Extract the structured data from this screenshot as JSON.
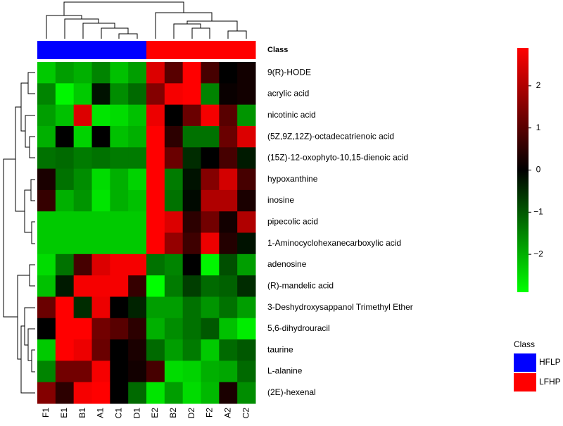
{
  "chart_data": {
    "type": "heatmap",
    "class_title": "Class",
    "columns": [
      "F1",
      "E1",
      "B1",
      "A1",
      "C1",
      "D1",
      "E2",
      "B2",
      "D2",
      "F2",
      "A2",
      "C2"
    ],
    "column_class": [
      "HFLP",
      "HFLP",
      "HFLP",
      "HFLP",
      "HFLP",
      "HFLP",
      "LFHP",
      "LFHP",
      "LFHP",
      "LFHP",
      "LFHP",
      "LFHP"
    ],
    "classes": [
      {
        "name": "HFLP",
        "color": "#0000ff"
      },
      {
        "name": "LFHP",
        "color": "#ff0000"
      }
    ],
    "rows": [
      "9(R)-HODE",
      "acrylic acid",
      "nicotinic acid",
      "(5Z,9Z,12Z)-octadecatrienoic acid",
      "(15Z)-12-oxophyto-10,15-dienoic acid",
      "hypoxanthine",
      "inosine",
      "pipecolic acid",
      "1-Aminocyclohexanecarboxylic acid",
      "adenosine",
      "(R)-mandelic acid",
      "3-Deshydroxysappanol Trimethyl Ether",
      "5,6-dihydrouracil",
      "taurine",
      "L-alanine",
      "(2E)-hexenal"
    ],
    "values": [
      [
        -2.3,
        -1.8,
        -2,
        -1.5,
        -2.2,
        -1.8,
        2.5,
        1,
        2.9,
        0.8,
        0,
        0.2
      ],
      [
        -1.5,
        -2.8,
        -2.3,
        -0.2,
        -1.6,
        -1.2,
        1.5,
        2.8,
        2.9,
        -1.5,
        0.1,
        0.2
      ],
      [
        -1.8,
        -2.2,
        2.5,
        -2.6,
        -2.5,
        -2.2,
        2.7,
        0,
        1.2,
        2.8,
        1,
        -1.7
      ],
      [
        -2,
        0,
        -2.4,
        0,
        -2.2,
        -2,
        2.9,
        0.5,
        -1.3,
        -1.3,
        1.2,
        2.5
      ],
      [
        -1.3,
        -1.2,
        -1.4,
        -1.3,
        -1.4,
        -1.4,
        2.9,
        1.2,
        -0.5,
        0,
        0.8,
        -0.3
      ],
      [
        0.3,
        -1.3,
        -1.6,
        -2.5,
        -2,
        -2.4,
        2.9,
        -1.4,
        -0.2,
        1.5,
        2.4,
        0.8
      ],
      [
        0.6,
        -2,
        -1.7,
        -2.6,
        -2,
        -2.2,
        2.9,
        -1.3,
        -0.1,
        2,
        2,
        0.3
      ],
      [
        -2.3,
        -2.3,
        -2.3,
        -2.3,
        -2.3,
        -2.3,
        2.9,
        2.5,
        0.5,
        1.3,
        0.2,
        2
      ],
      [
        -2.3,
        -2.3,
        -2.3,
        -2.3,
        -2.3,
        -2.3,
        2.9,
        1.7,
        0.7,
        2.7,
        0.4,
        -0.2
      ],
      [
        -2.5,
        -1.3,
        0.8,
        2.5,
        2.8,
        2.8,
        -1.3,
        -1.5,
        0,
        -2.8,
        -0.9,
        -1.8
      ],
      [
        -2.2,
        -0.3,
        2.8,
        2.8,
        2.8,
        0.6,
        -2.9,
        -1.4,
        -0.7,
        -1.2,
        -1.1,
        -0.5
      ],
      [
        1.2,
        2.9,
        -0.5,
        2.7,
        0,
        -0.4,
        -1.8,
        -1.8,
        -1.3,
        -1.7,
        -1.3,
        -1.8
      ],
      [
        0,
        2.9,
        2.9,
        1.3,
        1,
        0.5,
        -2,
        -1.6,
        -1.3,
        -1,
        -2.2,
        -2.7
      ],
      [
        -2.3,
        2.9,
        2.7,
        1.2,
        0,
        0.3,
        -1.2,
        -1.8,
        -1.4,
        -2.3,
        -1.2,
        -1
      ],
      [
        -1.5,
        1.3,
        1.3,
        2.8,
        0,
        0.2,
        0.8,
        -2.5,
        -2.4,
        -2,
        -1.9,
        -1.2
      ],
      [
        1.5,
        0.5,
        2.8,
        2.9,
        0,
        -1.2,
        -2.6,
        -1.8,
        -2.5,
        -2.1,
        0.3,
        -1.6
      ]
    ],
    "colorscale": [
      "#00ff00",
      "#000000",
      "#ff0000"
    ],
    "zlim": [
      -2.9,
      2.9
    ],
    "zticks": [
      {
        "value": -2,
        "label": "−2"
      },
      {
        "value": -1,
        "label": "−1"
      },
      0,
      1,
      2
    ]
  }
}
